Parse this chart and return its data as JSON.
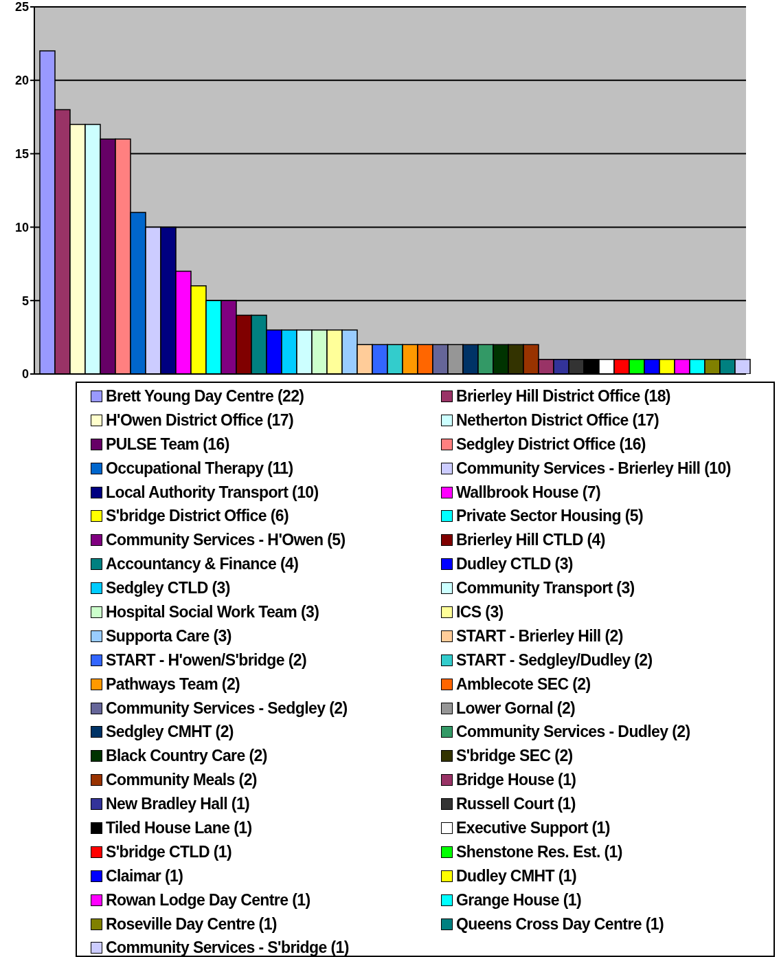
{
  "chart_data": {
    "type": "bar",
    "categories": [
      null
    ],
    "ylim": [
      0,
      25
    ],
    "yticks": [
      0,
      5,
      10,
      15,
      20,
      25
    ],
    "grid": "y",
    "legend": "bottom",
    "series": [
      {
        "name": "Brett Young Day Centre (22)",
        "color": "#9999ff",
        "values": [
          22
        ]
      },
      {
        "name": "Brierley Hill District Office (18)",
        "color": "#993366",
        "values": [
          18
        ]
      },
      {
        "name": "H'Owen District Office (17)",
        "color": "#ffffcc",
        "values": [
          17
        ]
      },
      {
        "name": "Netherton District Office (17)",
        "color": "#ccffff",
        "values": [
          17
        ]
      },
      {
        "name": "PULSE Team (16)",
        "color": "#660066",
        "values": [
          16
        ]
      },
      {
        "name": "Sedgley District Office (16)",
        "color": "#ff8080",
        "values": [
          16
        ]
      },
      {
        "name": "Occupational Therapy (11)",
        "color": "#0066cc",
        "values": [
          11
        ]
      },
      {
        "name": "Community Services - Brierley Hill (10)",
        "color": "#ccccff",
        "values": [
          10
        ]
      },
      {
        "name": "Local Authority Transport (10)",
        "color": "#000080",
        "values": [
          10
        ]
      },
      {
        "name": "Wallbrook House (7)",
        "color": "#ff00ff",
        "values": [
          7
        ]
      },
      {
        "name": "S'bridge District Office (6)",
        "color": "#ffff00",
        "values": [
          6
        ]
      },
      {
        "name": "Private Sector Housing (5)",
        "color": "#00ffff",
        "values": [
          5
        ]
      },
      {
        "name": "Community Services - H'Owen (5)",
        "color": "#800080",
        "values": [
          5
        ]
      },
      {
        "name": "Brierley Hill CTLD (4)",
        "color": "#800000",
        "values": [
          4
        ]
      },
      {
        "name": "Accountancy & Finance (4)",
        "color": "#008080",
        "values": [
          4
        ]
      },
      {
        "name": "Dudley CTLD (3)",
        "color": "#0000ff",
        "values": [
          3
        ]
      },
      {
        "name": "Sedgley CTLD (3)",
        "color": "#00ccff",
        "values": [
          3
        ]
      },
      {
        "name": "Community Transport (3)",
        "color": "#ccffff",
        "values": [
          3
        ]
      },
      {
        "name": "Hospital Social Work Team (3)",
        "color": "#ccffcc",
        "values": [
          3
        ]
      },
      {
        "name": "ICS (3)",
        "color": "#ffff99",
        "values": [
          3
        ]
      },
      {
        "name": "Supporta Care (3)",
        "color": "#99ccff",
        "values": [
          3
        ]
      },
      {
        "name": "START - Brierley Hill (2)",
        "color": "#ffcc99",
        "values": [
          2
        ]
      },
      {
        "name": "START - H'owen/S'bridge (2)",
        "color": "#3366ff",
        "values": [
          2
        ]
      },
      {
        "name": "START - Sedgley/Dudley (2)",
        "color": "#33cccc",
        "values": [
          2
        ]
      },
      {
        "name": "Pathways Team (2)",
        "color": "#ff9900",
        "values": [
          2
        ]
      },
      {
        "name": "Amblecote SEC (2)",
        "color": "#ff6600",
        "values": [
          2
        ]
      },
      {
        "name": "Community Services - Sedgley (2)",
        "color": "#666699",
        "values": [
          2
        ]
      },
      {
        "name": "Lower Gornal (2)",
        "color": "#969696",
        "values": [
          2
        ]
      },
      {
        "name": "Sedgley CMHT (2)",
        "color": "#003366",
        "values": [
          2
        ]
      },
      {
        "name": "Community Services - Dudley (2)",
        "color": "#339966",
        "values": [
          2
        ]
      },
      {
        "name": "Black Country Care (2)",
        "color": "#003300",
        "values": [
          2
        ]
      },
      {
        "name": "S'bridge SEC (2)",
        "color": "#333300",
        "values": [
          2
        ]
      },
      {
        "name": "Community Meals (2)",
        "color": "#993300",
        "values": [
          2
        ]
      },
      {
        "name": "Bridge House (1)",
        "color": "#993366",
        "values": [
          1
        ]
      },
      {
        "name": "New Bradley Hall (1)",
        "color": "#333399",
        "values": [
          1
        ]
      },
      {
        "name": "Russell Court (1)",
        "color": "#333333",
        "values": [
          1
        ]
      },
      {
        "name": "Tiled House Lane (1)",
        "color": "#000000",
        "values": [
          1
        ]
      },
      {
        "name": "Executive Support (1)",
        "color": "#ffffff",
        "values": [
          1
        ]
      },
      {
        "name": "S'bridge CTLD (1)",
        "color": "#ff0000",
        "values": [
          1
        ]
      },
      {
        "name": "Shenstone Res. Est. (1)",
        "color": "#00ff00",
        "values": [
          1
        ]
      },
      {
        "name": "Claimar (1)",
        "color": "#0000ff",
        "values": [
          1
        ]
      },
      {
        "name": "Dudley CMHT (1)",
        "color": "#ffff00",
        "values": [
          1
        ]
      },
      {
        "name": "Rowan Lodge Day Centre (1)",
        "color": "#ff00ff",
        "values": [
          1
        ]
      },
      {
        "name": "Grange House (1)",
        "color": "#00ffff",
        "values": [
          1
        ]
      },
      {
        "name": "Roseville Day Centre (1)",
        "color": "#808000",
        "values": [
          1
        ]
      },
      {
        "name": "Queens Cross Day Centre (1)",
        "color": "#008080",
        "values": [
          1
        ]
      },
      {
        "name": "Community Services - S'bridge (1)",
        "color": "#ccccff",
        "values": [
          1
        ]
      }
    ]
  }
}
